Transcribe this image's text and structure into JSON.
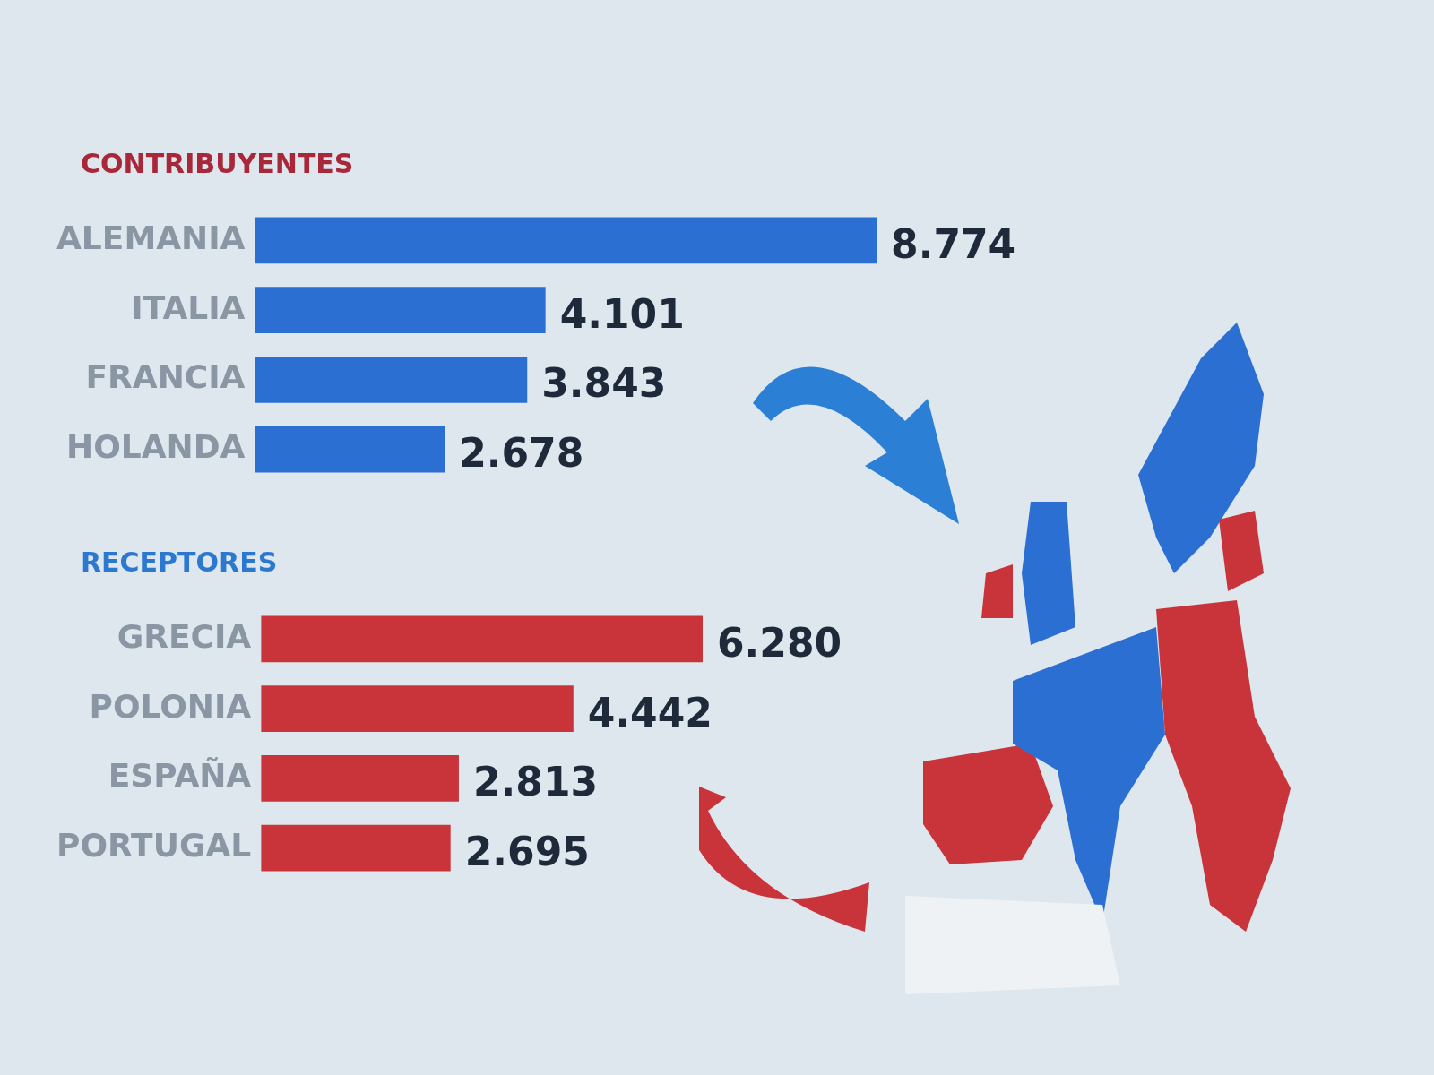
{
  "chart_data": [
    {
      "type": "bar",
      "orientation": "horizontal",
      "title": "CONTRIBUYENTES",
      "categories": [
        "ALEMANIA",
        "ITALIA",
        "FRANCIA",
        "HOLANDA"
      ],
      "values": [
        8774,
        4101,
        3843,
        2678
      ],
      "value_labels": [
        "8.774",
        "4.101",
        "3.843",
        "2.678"
      ],
      "color": "#2b6fd2",
      "grid": false,
      "legend": false
    },
    {
      "type": "bar",
      "orientation": "horizontal",
      "title": "RECEPTORES",
      "categories": [
        "GRECIA",
        "POLONIA",
        "ESPAÑA",
        "PORTUGAL"
      ],
      "values": [
        6280,
        4442,
        2813,
        2695
      ],
      "value_labels": [
        "6.280",
        "4.442",
        "2.813",
        "2.695"
      ],
      "color": "#c8343a",
      "grid": false,
      "legend": false
    }
  ]
}
